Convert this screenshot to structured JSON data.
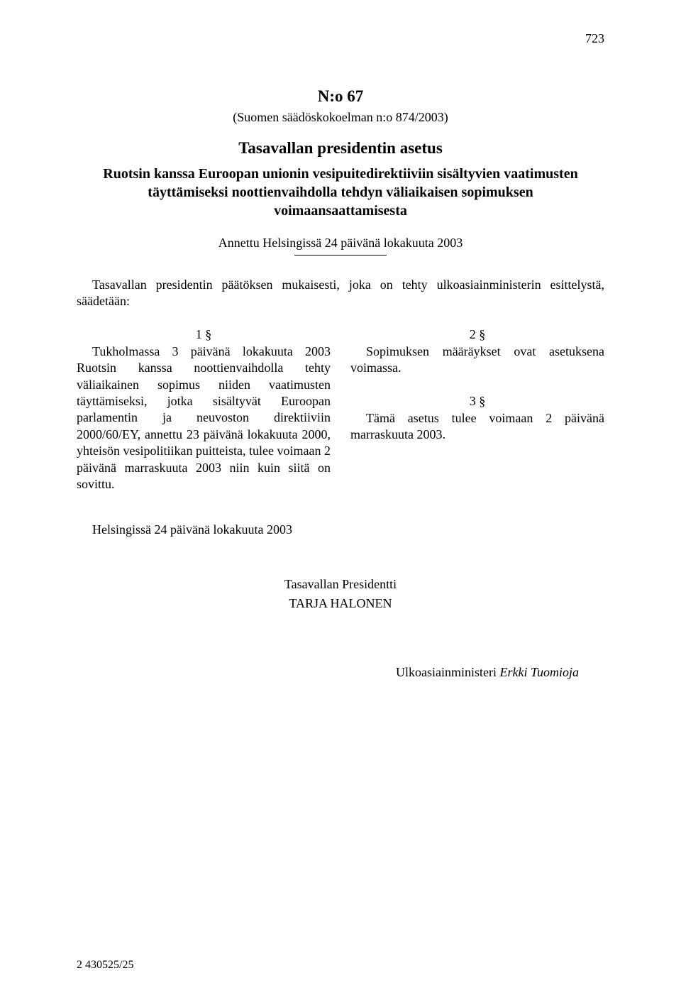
{
  "colors": {
    "background": "#ffffff",
    "text": "#000000"
  },
  "typography": {
    "font_family": "Times New Roman",
    "body_fontsize": 18,
    "title_fontsize": 23
  },
  "page_number_top": "723",
  "document_number": "N:o 67",
  "reference": "(Suomen säädöskokoelman n:o 874/2003)",
  "decree_title": "Tasavallan presidentin asetus",
  "decree_subject": "Ruotsin kanssa Euroopan unionin vesipuitedirektiiviin sisältyvien vaatimusten täyttämiseksi noottienvaihdolla tehdyn väliaikaisen sopimuksen voimaansaattamisesta",
  "given_at": "Annettu Helsingissä 24 päivänä lokakuuta 2003",
  "preamble": "Tasavallan presidentin päätöksen mukaisesti, joka on tehty ulkoasiainministerin esittelystä, säädetään:",
  "sections": {
    "s1": {
      "number": "1 §",
      "body": "Tukholmassa 3 päivänä lokakuuta 2003 Ruotsin kanssa noottienvaihdolla tehty väliaikainen sopimus niiden vaatimusten täyttämiseksi, jotka sisältyvät Euroopan parlamentin ja neuvoston direktiiviin 2000/60/EY, annettu 23 päivänä lokakuuta 2000, yhteisön vesipolitiikan puitteista, tulee voimaan 2 päivänä marraskuuta 2003 niin kuin siitä on sovittu."
    },
    "s2": {
      "number": "2 §",
      "body": "Sopimuksen määräykset ovat asetuksena voimassa."
    },
    "s3": {
      "number": "3 §",
      "body": "Tämä asetus tulee voimaan 2 päivänä marraskuuta 2003."
    }
  },
  "signed_at": "Helsingissä 24 päivänä lokakuuta 2003",
  "president_title": "Tasavallan Presidentti",
  "president_name": "TARJA HALONEN",
  "minister_title": "Ulkoasiainministeri ",
  "minister_name": "Erkki Tuomioja",
  "footer": "2   430525/25"
}
